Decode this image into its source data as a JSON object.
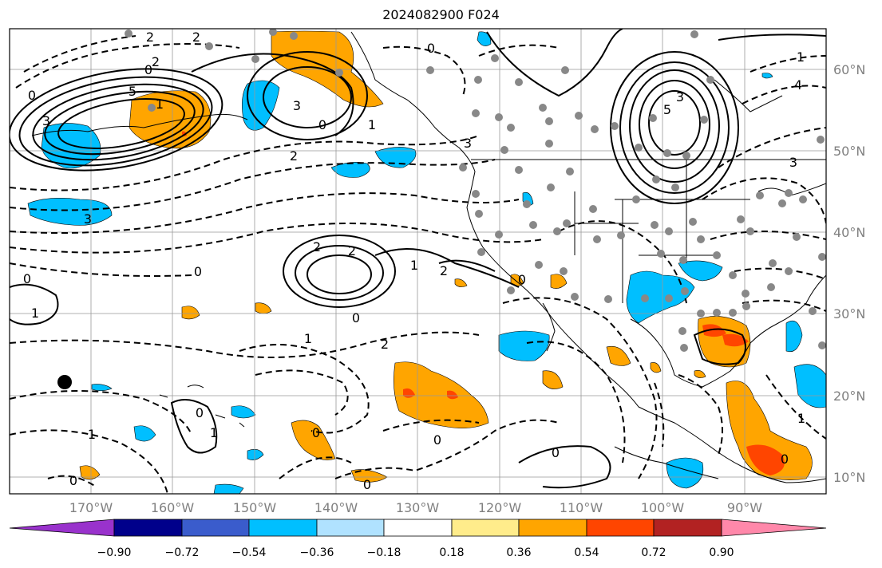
{
  "title": "2024082900 F024",
  "lon_labels": [
    "170°W",
    "160°W",
    "150°W",
    "140°W",
    "130°W",
    "120°W",
    "110°W",
    "100°W",
    "90°W"
  ],
  "lat_labels": [
    "60°N",
    "50°N",
    "40°N",
    "30°N",
    "20°N",
    "10°N"
  ],
  "colorbar": {
    "ticks": [
      "−0.90",
      "−0.72",
      "−0.54",
      "−0.36",
      "−0.18",
      "0.18",
      "0.36",
      "0.54",
      "0.72",
      "0.90"
    ],
    "colors": [
      "#9932cc",
      "#00008b",
      "#3a5ccc",
      "#00bfff",
      "#b0e2ff",
      "#ffffff",
      "#ffec8b",
      "#ffa500",
      "#ff4500",
      "#b22222",
      "#ff88aa"
    ]
  },
  "shading_colors": {
    "negative": "#00bfff",
    "positive": "#ffa500",
    "strong_positive": "#ff4500"
  },
  "contour_labels": [
    "2",
    "2",
    "0",
    "5",
    "3",
    "0",
    "0",
    "1",
    "2",
    "3",
    "0",
    "3",
    "5",
    "3",
    "4",
    "1",
    "3",
    "0",
    "2",
    "2",
    "1",
    "0",
    "1",
    "0",
    "2",
    "0",
    "0",
    "1",
    "1",
    "1",
    "2",
    "0",
    "0",
    "0",
    "0",
    "0",
    "1",
    "0",
    "2",
    "1",
    "3"
  ]
}
